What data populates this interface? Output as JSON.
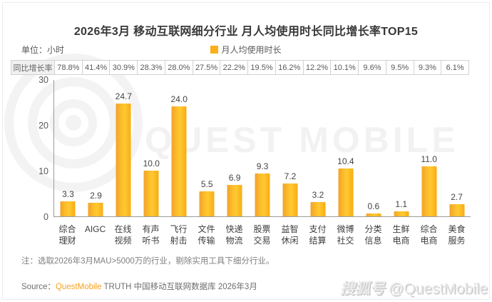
{
  "title": "2026年3月 移动互联网细分行业 月人均使用时长同比增长率TOP15",
  "unit_label": "单位：小时",
  "legend": {
    "label": "月人均使用时长",
    "color": "#FBB019"
  },
  "growth_row": {
    "label": "同比增长率"
  },
  "chart_data": {
    "type": "bar",
    "title": "2026年3月 移动互联网细分行业 月人均使用时长同比增长率TOP15",
    "series_name": "月人均使用时长",
    "categories": [
      "综合理财",
      "AIGC",
      "在线视频",
      "有声听书",
      "飞行射击",
      "文件传输",
      "快递物流",
      "股票交易",
      "益智休闲",
      "支付结算",
      "微博社交",
      "分类信息",
      "生鲜电商",
      "综合电商",
      "美食服务"
    ],
    "categories_display": [
      "综合\n理财",
      "AIGC",
      "在线\n视频",
      "有声\n听书",
      "飞行\n射击",
      "文件\n传输",
      "快递\n物流",
      "股票\n交易",
      "益智\n休闲",
      "支付\n结算",
      "微博\n社交",
      "分类\n信息",
      "生鲜\n电商",
      "综合\n电商",
      "美食\n服务"
    ],
    "values": [
      3.3,
      2.9,
      24.7,
      10.0,
      24.0,
      5.5,
      6.9,
      9.3,
      7.2,
      3.2,
      10.4,
      0.6,
      1.1,
      11.0,
      2.7
    ],
    "yoy_growth": [
      "78.8%",
      "41.4%",
      "30.9%",
      "28.3%",
      "28.0%",
      "27.5%",
      "22.2%",
      "19.5%",
      "16.2%",
      "12.2%",
      "10.1%",
      "9.6%",
      "9.5%",
      "9.3%",
      "6.1%"
    ],
    "ylabel": "小时",
    "ylim": [
      0,
      30
    ],
    "yticks": [
      0,
      10,
      20,
      30
    ],
    "bar_color": "#FBB019",
    "grid": false,
    "legend_position": "top-center"
  },
  "note": "注：选取2026年3月MAU>5000万的行业，剔除实用工具下细分行业。",
  "source": {
    "prefix": "Source：",
    "brand": "QuestMobile",
    "rest": " TRUTH 中国移动互联网数据库 2026年3月"
  },
  "watermark": {
    "logo_text": "QUEST MOBILE",
    "badge": "搜狐号",
    "handle": "@QuestMobile"
  }
}
